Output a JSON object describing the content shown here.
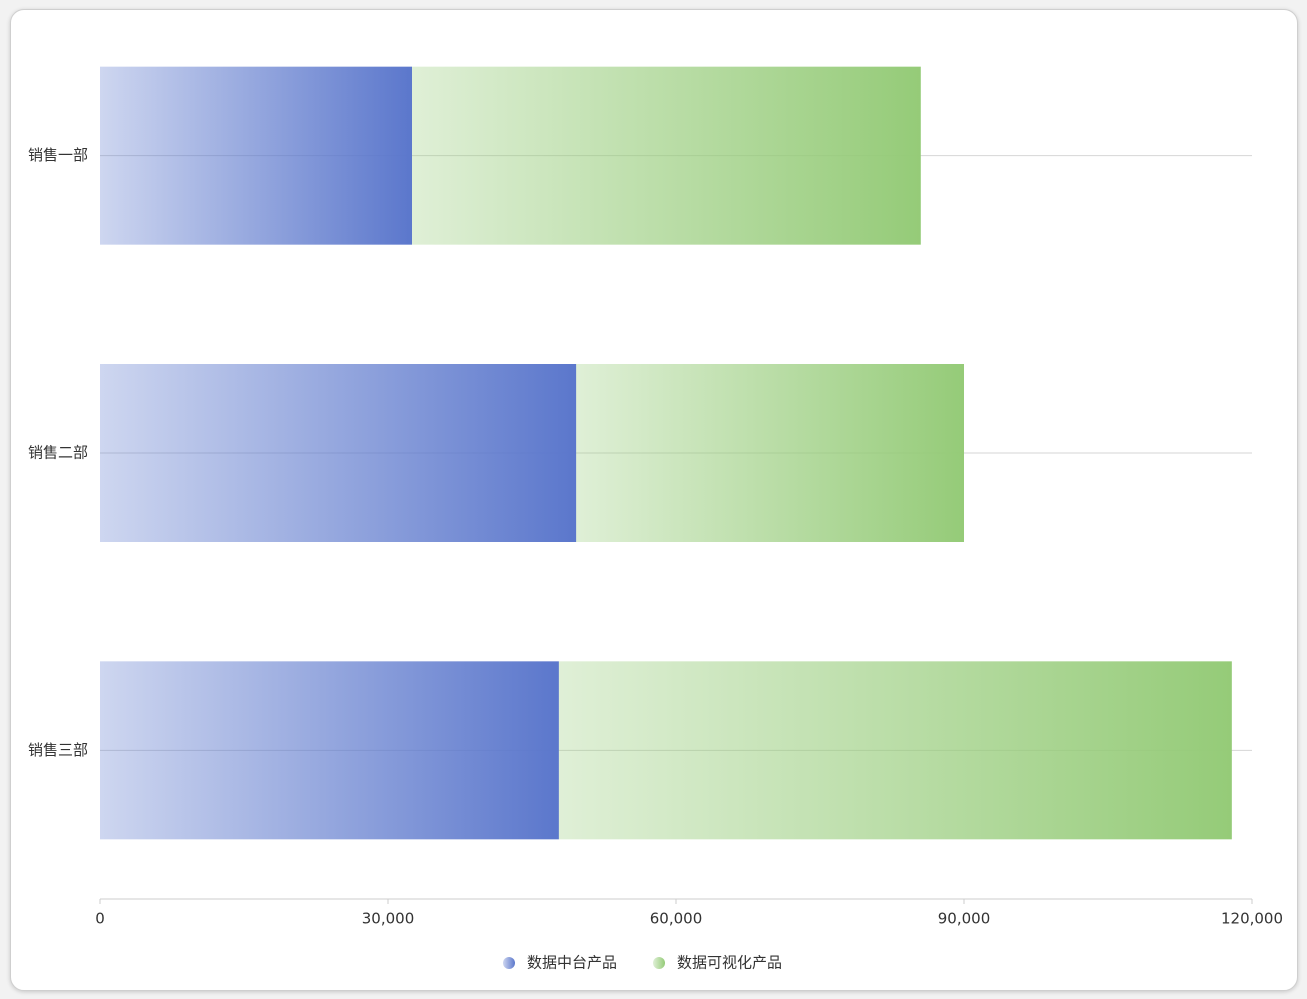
{
  "chart_data": {
    "type": "stacked-bar-horizontal",
    "categories": [
      "销售一部",
      "销售二部",
      "销售三部"
    ],
    "series": [
      {
        "name": "数据中台产品",
        "color": "#5b77cc",
        "values": [
          32500,
          49600,
          47800
        ]
      },
      {
        "name": "数据可视化产品",
        "color": "#95cb78",
        "values": [
          53000,
          40400,
          70100
        ]
      }
    ],
    "xlim": [
      0,
      120000
    ],
    "xticks": [
      0,
      {
        "value": 30000,
        "label": "30,000"
      },
      {
        "value": 60000,
        "label": "60,000"
      },
      {
        "value": 90000,
        "label": "90,000"
      },
      {
        "value": 120000,
        "label": "120,000"
      }
    ],
    "legend": "bottom"
  }
}
